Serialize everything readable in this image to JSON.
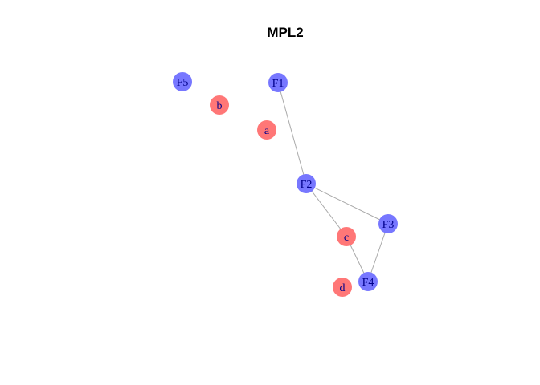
{
  "title": "MPL2",
  "colors": {
    "background": "#ffffff",
    "title": "#000000",
    "edge": "#aaaaaa",
    "factor_node": "#7777ff",
    "variable_node": "#ff7777",
    "label": "#00008b"
  },
  "nodes": [
    {
      "id": "F5",
      "label": "F5",
      "kind": "factor"
    },
    {
      "id": "F1",
      "label": "F1",
      "kind": "factor"
    },
    {
      "id": "b",
      "label": "b",
      "kind": "variable"
    },
    {
      "id": "a",
      "label": "a",
      "kind": "variable"
    },
    {
      "id": "F2",
      "label": "F2",
      "kind": "factor"
    },
    {
      "id": "F3",
      "label": "F3",
      "kind": "factor"
    },
    {
      "id": "c",
      "label": "c",
      "kind": "variable"
    },
    {
      "id": "F4",
      "label": "F4",
      "kind": "factor"
    },
    {
      "id": "d",
      "label": "d",
      "kind": "variable"
    }
  ],
  "edges": [
    {
      "from": "F1",
      "to": "F2"
    },
    {
      "from": "F2",
      "to": "F3"
    },
    {
      "from": "F2",
      "to": "c"
    },
    {
      "from": "c",
      "to": "F4"
    },
    {
      "from": "F3",
      "to": "F4"
    }
  ]
}
